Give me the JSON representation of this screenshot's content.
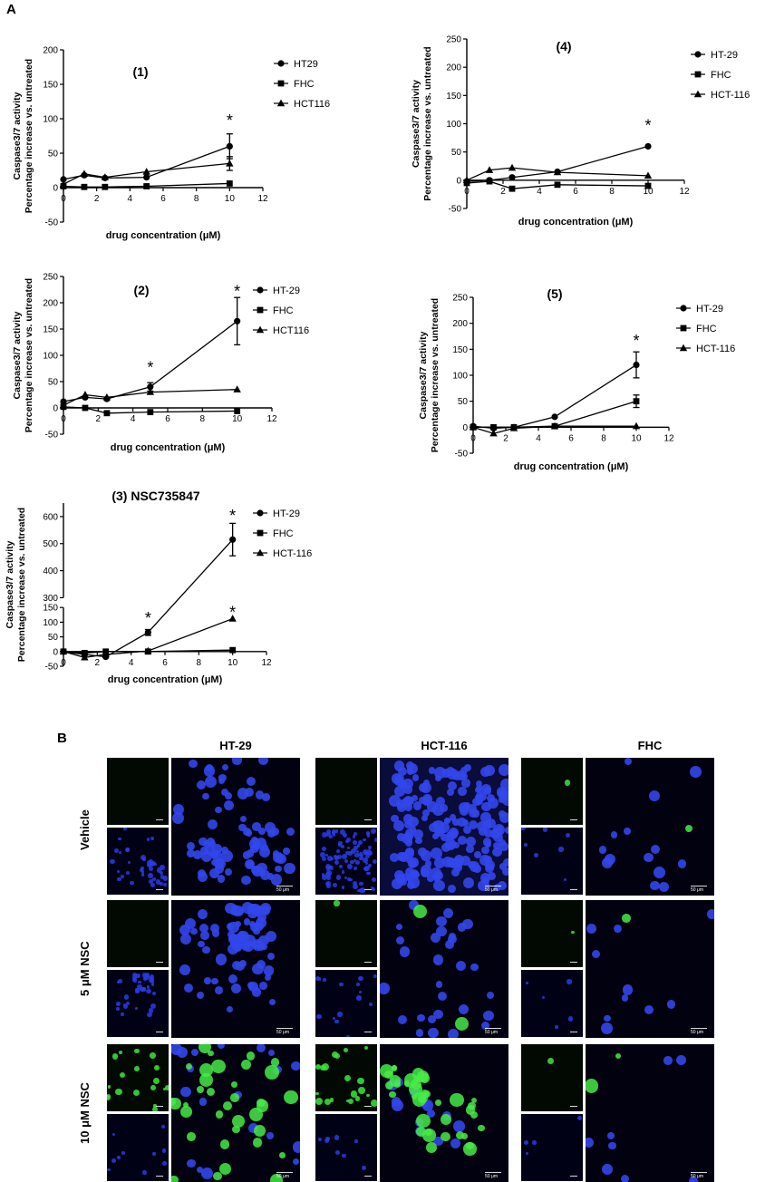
{
  "figure": {
    "panel_a_label": "A",
    "panel_b_label": "B"
  },
  "common": {
    "ylabel_line1": "Caspase3/7 activity",
    "ylabel_line2": "Percentage increase vs. untreated",
    "xlabel": "drug concentration (μM)"
  },
  "chart_data": [
    {
      "id": "chart1",
      "type": "line",
      "title": "(1)",
      "x": [
        0,
        1.25,
        2.5,
        5,
        10
      ],
      "xlim": [
        0,
        12
      ],
      "xticks": [
        0,
        2,
        4,
        6,
        8,
        10,
        12
      ],
      "ylim": [
        -50,
        200
      ],
      "yticks": [
        -50,
        0,
        50,
        100,
        150,
        200
      ],
      "series": [
        {
          "name": "HT29",
          "marker": "circle",
          "values": [
            12,
            18,
            14,
            15,
            60
          ],
          "err": [
            0,
            0,
            0,
            0,
            18
          ]
        },
        {
          "name": "FHC",
          "marker": "square",
          "values": [
            2,
            1,
            1,
            2,
            6
          ],
          "err": [
            0,
            0,
            0,
            0,
            0
          ]
        },
        {
          "name": "HCT116",
          "marker": "triangle",
          "values": [
            5,
            20,
            15,
            23,
            35
          ],
          "err": [
            0,
            0,
            0,
            0,
            10
          ]
        }
      ],
      "annotations": [
        {
          "x": 10,
          "y": 100,
          "text": "*"
        }
      ]
    },
    {
      "id": "chart2",
      "type": "line",
      "title": "(2)",
      "x": [
        0,
        1.25,
        2.5,
        5,
        10
      ],
      "xlim": [
        0,
        12
      ],
      "xticks": [
        0,
        2,
        4,
        6,
        8,
        10,
        12
      ],
      "ylim": [
        -50,
        250
      ],
      "yticks": [
        -50,
        0,
        50,
        100,
        150,
        200,
        250
      ],
      "series": [
        {
          "name": "HT-29",
          "marker": "circle",
          "values": [
            12,
            20,
            17,
            40,
            165
          ],
          "err": [
            0,
            0,
            0,
            8,
            45
          ]
        },
        {
          "name": "FHC",
          "marker": "square",
          "values": [
            2,
            0,
            -10,
            -8,
            -6
          ],
          "err": [
            0,
            0,
            0,
            0,
            0
          ]
        },
        {
          "name": "HCT116",
          "marker": "triangle",
          "values": [
            5,
            25,
            20,
            30,
            35
          ],
          "err": [
            0,
            0,
            0,
            0,
            0
          ]
        }
      ],
      "annotations": [
        {
          "x": 5,
          "y": 80,
          "text": "*"
        },
        {
          "x": 10,
          "y": 225,
          "text": "*"
        }
      ]
    },
    {
      "id": "chart3",
      "type": "line",
      "title": "(3) NSC735847",
      "x": [
        0,
        1.25,
        2.5,
        5,
        10
      ],
      "xlim": [
        0,
        12
      ],
      "xticks": [
        0,
        2,
        4,
        6,
        8,
        10,
        12
      ],
      "ylim": [
        -50,
        650
      ],
      "yticks": [
        -50,
        0,
        50,
        100,
        150,
        300,
        400,
        500,
        600
      ],
      "broken_axis": [
        150,
        300
      ],
      "series": [
        {
          "name": "HT-29",
          "marker": "circle",
          "values": [
            0,
            -10,
            -18,
            65,
            515
          ],
          "err": [
            0,
            0,
            0,
            10,
            60
          ]
        },
        {
          "name": "FHC",
          "marker": "square",
          "values": [
            0,
            -5,
            0,
            0,
            5
          ],
          "err": [
            0,
            0,
            0,
            0,
            0
          ]
        },
        {
          "name": "HCT-116",
          "marker": "triangle",
          "values": [
            0,
            -20,
            -10,
            2,
            112
          ],
          "err": [
            0,
            0,
            0,
            0,
            0
          ]
        }
      ],
      "annotations": [
        {
          "x": 5,
          "y": 120,
          "text": "*"
        },
        {
          "x": 10,
          "y": 610,
          "text": "*"
        },
        {
          "x": 10,
          "y": 140,
          "text": "*"
        }
      ]
    },
    {
      "id": "chart4",
      "type": "line",
      "title": "(4)",
      "x": [
        0,
        1.25,
        2.5,
        5,
        10
      ],
      "xlim": [
        0,
        12
      ],
      "xticks": [
        0,
        2,
        4,
        6,
        8,
        10,
        12
      ],
      "ylim": [
        -50,
        250
      ],
      "yticks": [
        -50,
        0,
        50,
        100,
        150,
        200,
        250
      ],
      "series": [
        {
          "name": "HT-29",
          "marker": "circle",
          "values": [
            -2,
            0,
            5,
            15,
            60
          ],
          "err": [
            0,
            0,
            0,
            0,
            0
          ]
        },
        {
          "name": "FHC",
          "marker": "square",
          "values": [
            -5,
            -2,
            -15,
            -8,
            -10
          ],
          "err": [
            0,
            0,
            0,
            0,
            0
          ]
        },
        {
          "name": "HCT-116",
          "marker": "triangle",
          "values": [
            0,
            18,
            22,
            14,
            8
          ],
          "err": [
            0,
            0,
            0,
            0,
            0
          ]
        }
      ],
      "annotations": [
        {
          "x": 10,
          "y": 100,
          "text": "*"
        }
      ]
    },
    {
      "id": "chart5",
      "type": "line",
      "title": "(5)",
      "x": [
        0,
        1.25,
        2.5,
        5,
        10
      ],
      "xlim": [
        0,
        12
      ],
      "xticks": [
        0,
        2,
        4,
        6,
        8,
        10,
        12
      ],
      "ylim": [
        -50,
        250
      ],
      "yticks": [
        -50,
        0,
        50,
        100,
        150,
        200,
        250
      ],
      "series": [
        {
          "name": "HT-29",
          "marker": "circle",
          "values": [
            2,
            -2,
            0,
            20,
            120
          ],
          "err": [
            0,
            0,
            0,
            0,
            25
          ]
        },
        {
          "name": "FHC",
          "marker": "square",
          "values": [
            0,
            0,
            0,
            2,
            50
          ],
          "err": [
            0,
            0,
            0,
            0,
            12
          ]
        },
        {
          "name": "HCT-116",
          "marker": "triangle",
          "values": [
            0,
            -12,
            -2,
            2,
            2
          ],
          "err": [
            0,
            0,
            0,
            0,
            0
          ]
        }
      ],
      "annotations": [
        {
          "x": 10,
          "y": 170,
          "text": "*"
        }
      ]
    }
  ],
  "microscopy": {
    "columns": [
      "HT-29",
      "HCT-116",
      "FHC"
    ],
    "rows": [
      "Vehicle",
      "5 μM NSC",
      "10 μM NSC"
    ],
    "scale_large": "50 μm",
    "scale_small": "50 μm"
  }
}
